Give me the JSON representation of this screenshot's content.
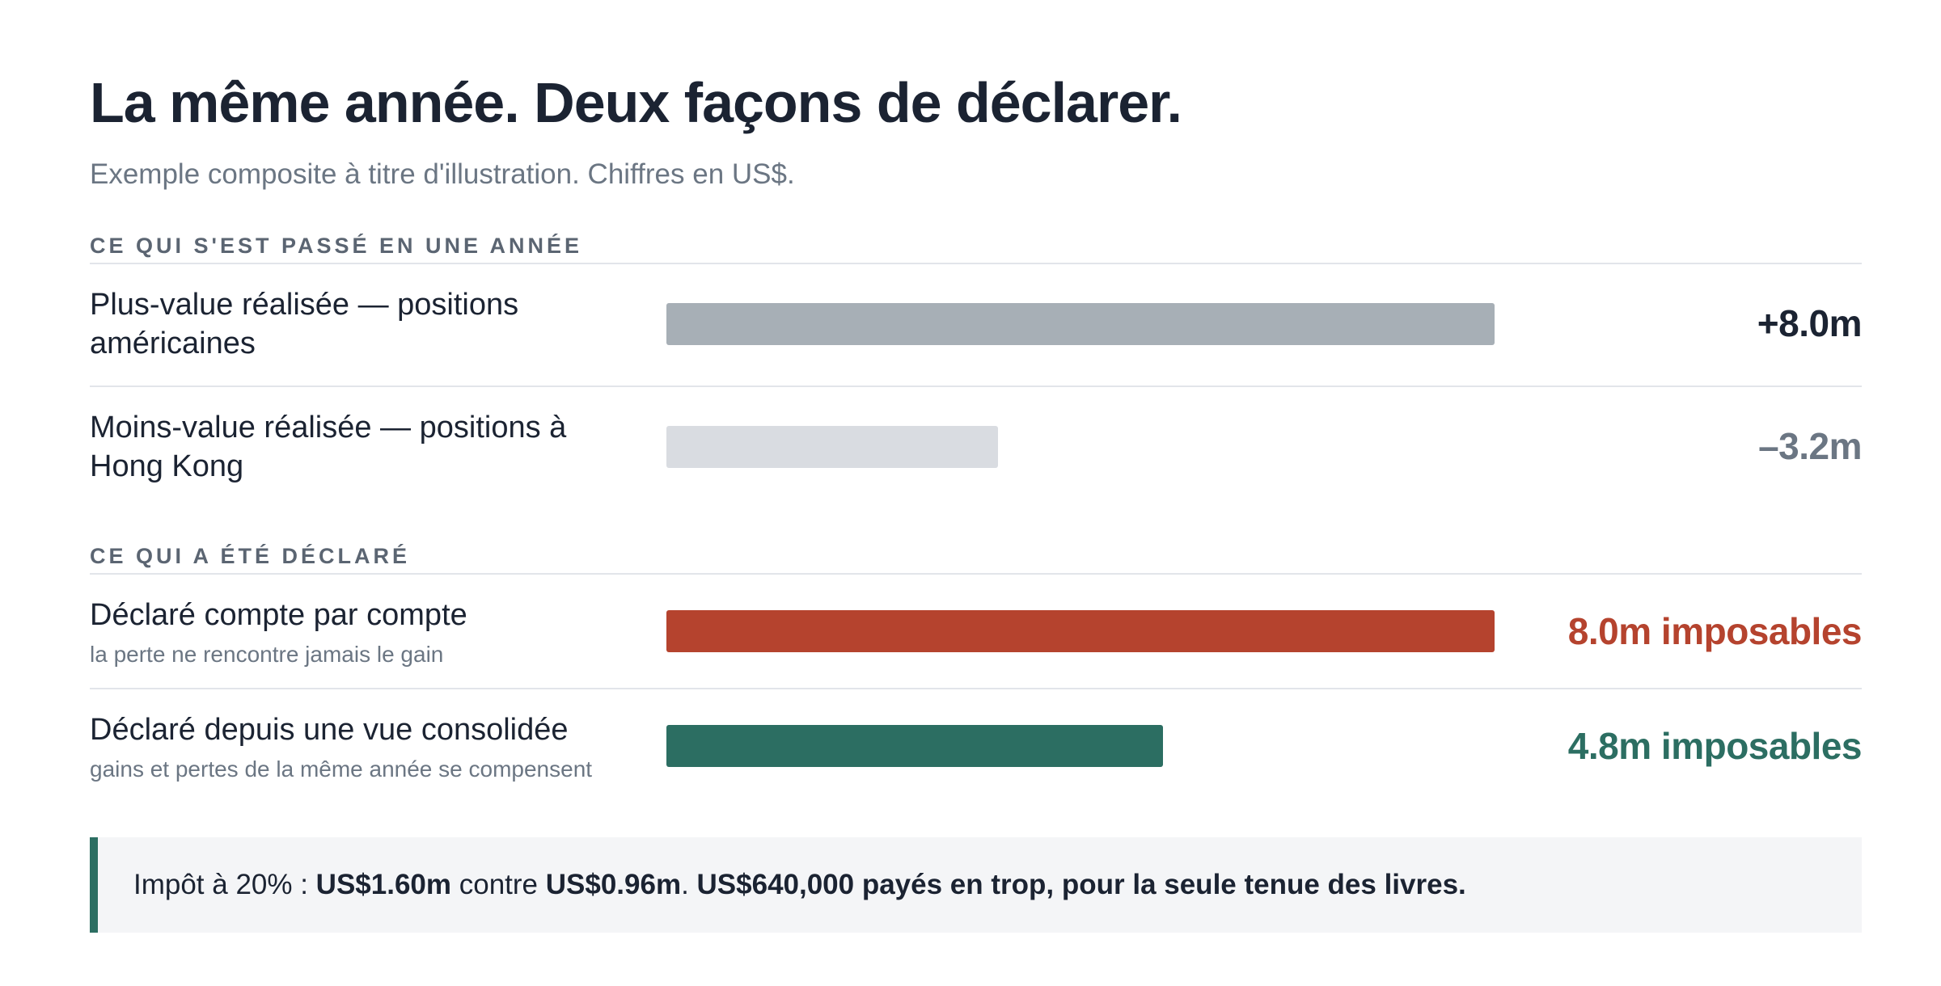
{
  "title": "La même année. Deux façons de déclarer.",
  "subtitle": "Exemple composite à titre d'illustration. Chiffres en US$.",
  "sections": {
    "happened": "CE QUI S'EST PASSÉ EN UNE ANNÉE",
    "declared": "CE QUI A ÉTÉ DÉCLARÉ"
  },
  "colors": {
    "gain": "#a7afb6",
    "loss": "#d9dce1",
    "separate": "#b5432e",
    "consolidated": "#2c6e62",
    "gain_text": "#1b2332",
    "loss_text": "#6b7683"
  },
  "chart_data": {
    "type": "bar",
    "orientation": "horizontal",
    "unit": "m",
    "scale_max": 8.0,
    "rows": [
      {
        "label": "Plus-value réalisée — positions américaines",
        "sublabel": "",
        "value": 8.0,
        "value_label": "+8.0m"
      },
      {
        "label": "Moins-value réalisée — positions à Hong Kong",
        "sublabel": "",
        "value": -3.2,
        "value_label": "–3.2m"
      },
      {
        "label": "Déclaré compte par compte",
        "sublabel": "la perte ne rencontre jamais le gain",
        "value": 8.0,
        "value_label": "8.0m imposables"
      },
      {
        "label": "Déclaré depuis une vue consolidée",
        "sublabel": "gains et pertes de la même année se compensent",
        "value": 4.8,
        "value_label": "4.8m imposables"
      }
    ]
  },
  "note": {
    "prefix": "Impôt à 20% : ",
    "amount_a": "US$1.60m",
    "middle": " contre ",
    "amount_b": "US$0.96m",
    "sep": ". ",
    "conclusion": "US$640,000 payés en trop, pour la seule tenue des livres."
  }
}
